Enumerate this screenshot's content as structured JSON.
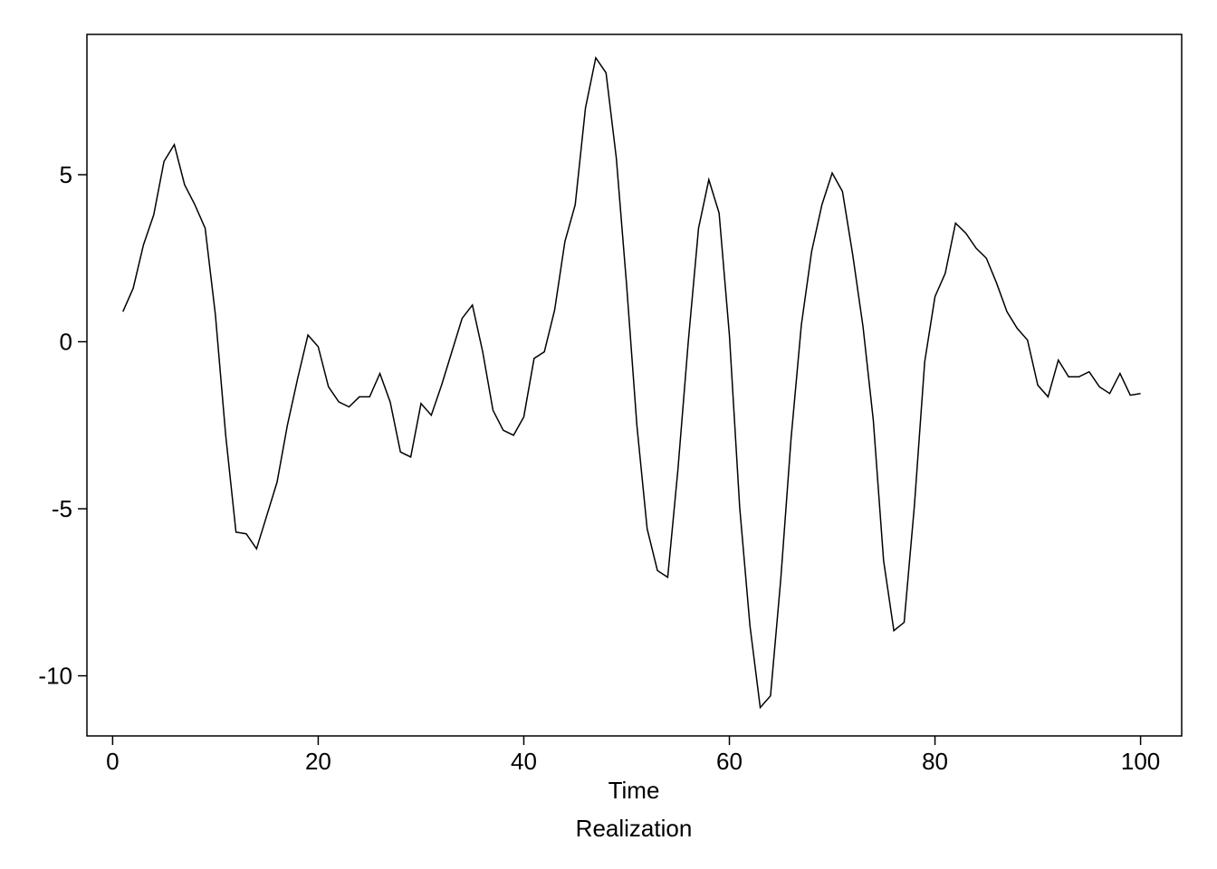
{
  "chart_data": {
    "type": "line",
    "title": "",
    "xlabel": "Time",
    "caption": "Realization",
    "ylabel": "",
    "xlim": [
      -2.5,
      104
    ],
    "ylim": [
      -11.8,
      9.2
    ],
    "x_ticks": [
      0,
      20,
      40,
      60,
      80,
      100
    ],
    "x_tick_labels": [
      "0",
      "20",
      "40",
      "60",
      "80",
      "100"
    ],
    "y_ticks": [
      5,
      0,
      -5,
      -10
    ],
    "y_tick_labels": [
      "5",
      "0",
      "-5",
      "-10"
    ],
    "grid": false,
    "line_color": "#000000",
    "series": [
      {
        "x": [
          1,
          2,
          3,
          4,
          5,
          6,
          7,
          8,
          9,
          10,
          11,
          12,
          13,
          14,
          15,
          16,
          17,
          18,
          19,
          20,
          21,
          22,
          23,
          24,
          25,
          26,
          27,
          28,
          29,
          30,
          31,
          32,
          33,
          34,
          35,
          36,
          37,
          38,
          39,
          40,
          41,
          42,
          43,
          44,
          45,
          46,
          47,
          48,
          49,
          50,
          51,
          52,
          53,
          54,
          55,
          56,
          57,
          58,
          59,
          60,
          61,
          62,
          63,
          64,
          65,
          66,
          67,
          68,
          69,
          70,
          71,
          72,
          73,
          74,
          75,
          76,
          77,
          78,
          79,
          80,
          81,
          82,
          83,
          84,
          85,
          86,
          87,
          88,
          89,
          90,
          91,
          92,
          93,
          94,
          95,
          96,
          97,
          98,
          99,
          100
        ],
        "values": [
          0.9,
          1.6,
          2.9,
          3.8,
          5.4,
          5.9,
          4.7,
          4.1,
          3.4,
          0.8,
          -2.8,
          -5.7,
          -5.75,
          -6.2,
          -5.2,
          -4.2,
          -2.5,
          -1.1,
          0.2,
          -0.15,
          -1.35,
          -1.8,
          -1.95,
          -1.65,
          -1.65,
          -0.95,
          -1.8,
          -3.3,
          -3.45,
          -1.85,
          -2.2,
          -1.3,
          -0.3,
          0.7,
          1.1,
          -0.3,
          -2.05,
          -2.65,
          -2.8,
          -2.25,
          -0.5,
          -0.3,
          0.95,
          3.0,
          4.1,
          7.0,
          8.5,
          8.05,
          5.5,
          1.7,
          -2.5,
          -5.6,
          -6.85,
          -7.05,
          -3.8,
          0.0,
          3.4,
          4.85,
          3.85,
          0.2,
          -4.95,
          -8.5,
          -10.95,
          -10.6,
          -7.1,
          -2.9,
          0.5,
          2.7,
          4.1,
          5.05,
          4.5,
          2.6,
          0.45,
          -2.35,
          -6.55,
          -8.65,
          -8.4,
          -4.9,
          -0.6,
          1.35,
          2.05,
          3.55,
          3.25,
          2.8,
          2.5,
          1.75,
          0.9,
          0.4,
          0.05,
          -1.3,
          -1.65,
          -0.55,
          -1.05,
          -1.05,
          -0.9,
          -1.35,
          -1.55,
          -0.95,
          -1.6,
          -1.55
        ]
      }
    ]
  }
}
